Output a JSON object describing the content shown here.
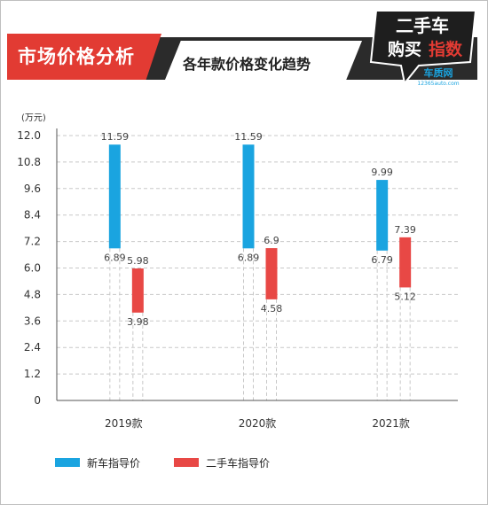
{
  "header": {
    "title": "市场价格分析",
    "subtitle": "各年款价格变化趋势"
  },
  "logo": {
    "line1": "二手车",
    "line2a": "购买",
    "line2b": "指数",
    "brand": "车质网",
    "url": "12365auto.com"
  },
  "colors": {
    "new_car": "#1aa4e0",
    "used_car": "#e84845",
    "title_red": "#e23b33",
    "band_dark": "#2b2b2b"
  },
  "chart_data": {
    "type": "bar",
    "subtype": "floating-range",
    "unit_label": "(万元)",
    "categories": [
      "2019款",
      "2020款",
      "2021款"
    ],
    "ylim": [
      0,
      12.0
    ],
    "yticks": [
      "0",
      "1.2",
      "2.4",
      "3.6",
      "4.8",
      "6.0",
      "7.2",
      "8.4",
      "9.6",
      "10.8",
      "12.0"
    ],
    "grid": true,
    "legend_position": "bottom",
    "series": [
      {
        "name": "新车指导价",
        "color": "#1aa4e0",
        "ranges": [
          {
            "low": 6.89,
            "high": 11.59,
            "low_label": "6.89",
            "high_label": "11.59"
          },
          {
            "low": 6.89,
            "high": 11.59,
            "low_label": "6.89",
            "high_label": "11.59"
          },
          {
            "low": 6.79,
            "high": 9.99,
            "low_label": "6.79",
            "high_label": "9.99"
          }
        ]
      },
      {
        "name": "二手车指导价",
        "color": "#e84845",
        "ranges": [
          {
            "low": 3.98,
            "high": 5.98,
            "low_label": "3.98",
            "high_label": "5.98"
          },
          {
            "low": 4.58,
            "high": 6.9,
            "low_label": "4.58",
            "high_label": "6.9"
          },
          {
            "low": 5.12,
            "high": 7.39,
            "low_label": "5.12",
            "high_label": "7.39"
          }
        ]
      }
    ]
  }
}
